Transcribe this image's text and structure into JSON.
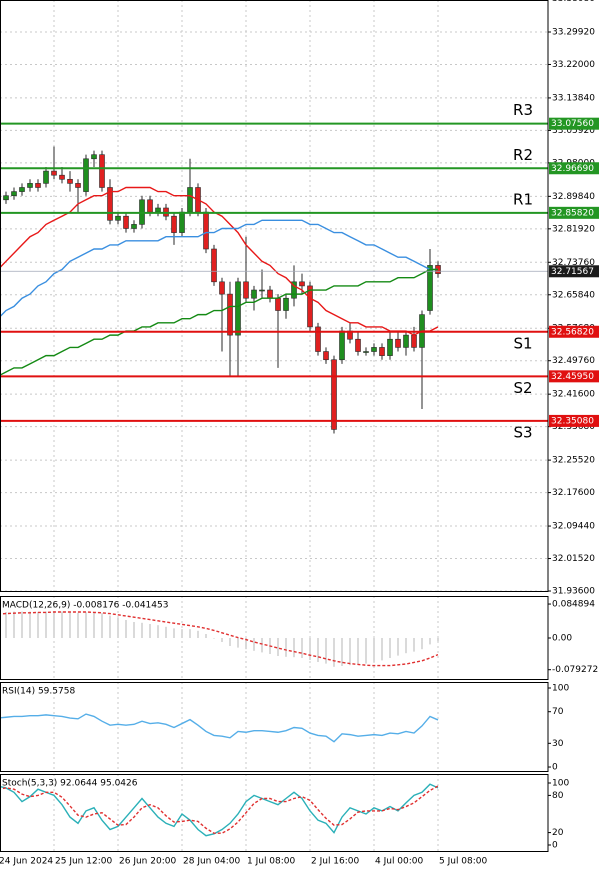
{
  "chart_data": [
    {
      "type": "candlestick",
      "categories": [
        "24 Jun 2024",
        null,
        null,
        null,
        null,
        null,
        null,
        "25 Jun 12:00",
        null,
        null,
        null,
        null,
        null,
        null,
        null,
        "26 Jun 20:00",
        null,
        null,
        null,
        null,
        null,
        null,
        null,
        "28 Jun 04:00",
        null,
        null,
        null,
        null,
        null,
        null,
        null,
        "1 Jul 08:00",
        null,
        null,
        null,
        null,
        null,
        null,
        null,
        "2 Jul 16:00",
        null,
        null,
        null,
        null,
        null,
        null,
        null,
        "4 Jul 00:00",
        null,
        null,
        null,
        null,
        null,
        null,
        null,
        "5 Jul 08:00"
      ],
      "open": [
        32.88,
        32.89,
        32.9,
        32.91,
        32.92,
        32.93,
        32.93,
        32.96,
        32.95,
        32.94,
        32.93,
        32.91,
        32.99,
        33.0,
        32.92,
        32.84,
        32.85,
        32.82,
        32.83,
        32.89,
        32.86,
        32.87,
        32.85,
        32.81,
        32.86,
        32.92,
        32.86,
        32.77,
        32.69,
        32.66,
        32.56,
        32.69,
        32.65,
        32.67,
        32.67,
        32.65,
        32.62,
        32.65,
        32.69,
        32.68,
        32.58,
        32.52,
        32.5,
        32.5,
        32.57,
        32.55,
        32.52,
        32.52,
        32.53,
        32.51,
        32.55,
        32.53,
        32.56,
        32.53,
        32.62,
        32.73
      ],
      "high": [
        32.9,
        32.91,
        32.92,
        32.93,
        32.94,
        32.94,
        32.97,
        33.02,
        32.97,
        32.96,
        32.94,
        33.0,
        33.01,
        33.01,
        32.94,
        32.86,
        32.86,
        32.84,
        32.9,
        32.9,
        32.88,
        32.88,
        32.86,
        32.87,
        32.99,
        32.93,
        32.87,
        32.78,
        32.7,
        32.69,
        32.7,
        32.8,
        32.68,
        32.72,
        32.68,
        32.66,
        32.66,
        32.73,
        32.71,
        32.69,
        32.59,
        32.53,
        32.51,
        32.58,
        32.59,
        32.57,
        32.53,
        32.54,
        32.54,
        32.57,
        32.57,
        32.57,
        32.58,
        32.62,
        32.77,
        32.74
      ],
      "low": [
        32.87,
        32.88,
        32.89,
        32.9,
        32.91,
        32.91,
        32.92,
        32.94,
        32.93,
        32.91,
        32.86,
        32.9,
        32.97,
        32.91,
        32.83,
        32.83,
        32.81,
        32.81,
        32.82,
        32.85,
        32.85,
        32.84,
        32.78,
        32.8,
        32.85,
        32.85,
        32.76,
        32.68,
        32.52,
        32.46,
        32.46,
        32.64,
        32.62,
        32.65,
        32.64,
        32.48,
        32.6,
        32.63,
        32.66,
        32.57,
        32.51,
        32.49,
        32.32,
        32.49,
        32.54,
        32.51,
        32.51,
        32.51,
        32.5,
        32.5,
        32.52,
        32.51,
        32.52,
        32.38,
        32.61,
        32.7
      ],
      "close": [
        32.89,
        32.9,
        32.91,
        32.92,
        32.93,
        32.92,
        32.96,
        32.95,
        32.94,
        32.93,
        32.92,
        32.99,
        33.0,
        32.92,
        32.84,
        32.85,
        32.82,
        32.83,
        32.89,
        32.86,
        32.87,
        32.85,
        32.81,
        32.86,
        32.92,
        32.86,
        32.77,
        32.69,
        32.66,
        32.56,
        32.69,
        32.65,
        32.67,
        32.67,
        32.65,
        32.62,
        32.65,
        32.69,
        32.68,
        32.58,
        32.52,
        32.5,
        32.33,
        32.57,
        32.55,
        32.52,
        32.52,
        32.53,
        32.51,
        32.55,
        32.53,
        32.56,
        32.53,
        32.61,
        32.73,
        32.71
      ],
      "up_color": "#1f8f1f",
      "down_color": "#e02020",
      "series": [
        {
          "color": "#e81818",
          "values": [
            32.72,
            32.74,
            32.76,
            32.78,
            32.8,
            32.81,
            32.83,
            32.84,
            32.85,
            32.86,
            32.88,
            32.89,
            32.9,
            32.9,
            32.91,
            32.91,
            32.92,
            32.92,
            32.92,
            32.92,
            32.91,
            32.91,
            32.9,
            32.9,
            32.9,
            32.89,
            32.88,
            32.86,
            32.85,
            32.83,
            32.81,
            32.78,
            32.76,
            32.74,
            32.73,
            32.71,
            32.7,
            32.68,
            32.67,
            32.65,
            32.64,
            32.62,
            32.61,
            32.6,
            32.59,
            32.59,
            32.58,
            32.58,
            32.58,
            32.57,
            32.57,
            32.57,
            32.56,
            32.57,
            32.57,
            32.58
          ]
        },
        {
          "color": "#3a8fe0",
          "values": [
            32.6,
            32.62,
            32.63,
            32.65,
            32.66,
            32.68,
            32.69,
            32.71,
            32.72,
            32.74,
            32.75,
            32.76,
            32.77,
            32.77,
            32.78,
            32.78,
            32.79,
            32.79,
            32.79,
            32.79,
            32.79,
            32.8,
            32.8,
            32.8,
            32.8,
            32.8,
            32.81,
            32.81,
            32.82,
            32.82,
            32.82,
            32.83,
            32.83,
            32.84,
            32.84,
            32.84,
            32.84,
            32.84,
            32.84,
            32.83,
            32.83,
            32.82,
            32.81,
            32.81,
            32.8,
            32.79,
            32.78,
            32.78,
            32.77,
            32.76,
            32.75,
            32.75,
            32.74,
            32.73,
            32.72,
            32.72
          ]
        },
        {
          "color": "#148a14",
          "values": [
            32.46,
            32.47,
            32.48,
            32.48,
            32.49,
            32.5,
            32.51,
            32.51,
            32.52,
            32.53,
            32.53,
            32.54,
            32.55,
            32.55,
            32.56,
            32.56,
            32.57,
            32.57,
            32.58,
            32.58,
            32.59,
            32.59,
            32.59,
            32.6,
            32.6,
            32.61,
            32.61,
            32.62,
            32.62,
            32.63,
            32.63,
            32.64,
            32.64,
            32.65,
            32.65,
            32.65,
            32.66,
            32.66,
            32.66,
            32.67,
            32.67,
            32.67,
            32.68,
            32.68,
            32.68,
            32.68,
            32.69,
            32.69,
            32.69,
            32.69,
            32.7,
            32.7,
            32.7,
            32.71,
            32.72,
            32.72
          ]
        }
      ],
      "levels": [
        {
          "name": "R3",
          "value": 33.0756,
          "label": "33.07560",
          "color": "#239623"
        },
        {
          "name": "R2",
          "value": 32.9669,
          "label": "32.96690",
          "color": "#239623"
        },
        {
          "name": "R1",
          "value": 32.8582,
          "label": "32.85820",
          "color": "#239623"
        },
        {
          "name": "S1",
          "value": 32.5682,
          "label": "32.56820",
          "color": "#e01010"
        },
        {
          "name": "S2",
          "value": 32.4595,
          "label": "32.45950",
          "color": "#e01010"
        },
        {
          "name": "S3",
          "value": 32.3508,
          "label": "32.35080",
          "color": "#e01010"
        }
      ],
      "current": {
        "value": 32.71567,
        "color": "#1a1a1a"
      },
      "ylim": [
        31.9336,
        33.3772
      ],
      "yticks": [
        {
          "value": 33.3808,
          "label": "33.38080"
        },
        {
          "value": 33.2992,
          "label": "33.29920"
        },
        {
          "value": 33.22,
          "label": "33.22000"
        },
        {
          "value": 33.1384,
          "label": "33.13840"
        },
        {
          "value": 33.0592,
          "label": "33.05920"
        },
        {
          "value": 32.98,
          "label": "32.98000"
        },
        {
          "value": 32.8984,
          "label": "32.89840"
        },
        {
          "value": 32.8192,
          "label": "32.81920"
        },
        {
          "value": 32.7376,
          "label": "32.73760"
        },
        {
          "value": 32.6584,
          "label": "32.65840"
        },
        {
          "value": 32.5768,
          "label": "32.57680"
        },
        {
          "value": 32.4976,
          "label": "32.49760"
        },
        {
          "value": 32.416,
          "label": "32.41600"
        },
        {
          "value": 32.3368,
          "label": "32.33680"
        },
        {
          "value": 32.2552,
          "label": "32.25520"
        },
        {
          "value": 32.176,
          "label": "32.17600"
        },
        {
          "value": 32.0944,
          "label": "32.09440"
        },
        {
          "value": 32.0152,
          "label": "32.01520"
        },
        {
          "value": 31.936,
          "label": "31.93600"
        }
      ],
      "grid": true
    },
    {
      "type": "bar",
      "label": "MACD(12,26,9) -0.008176 -0.041453",
      "values": [
        0.065,
        0.065,
        0.066,
        0.066,
        0.066,
        0.065,
        0.066,
        0.067,
        0.066,
        0.065,
        0.063,
        0.064,
        0.065,
        0.062,
        0.056,
        0.05,
        0.045,
        0.04,
        0.038,
        0.035,
        0.032,
        0.028,
        0.024,
        0.022,
        0.022,
        0.018,
        0.01,
        0.0,
        -0.01,
        -0.02,
        -0.024,
        -0.028,
        -0.032,
        -0.036,
        -0.04,
        -0.045,
        -0.047,
        -0.048,
        -0.05,
        -0.055,
        -0.06,
        -0.064,
        -0.072,
        -0.07,
        -0.068,
        -0.066,
        -0.064,
        -0.06,
        -0.056,
        -0.05,
        -0.044,
        -0.038,
        -0.034,
        -0.028,
        -0.016,
        -0.008176
      ],
      "color": "#b4b4b4",
      "series": [
        {
          "color": "#e03030",
          "dash": true,
          "values": [
            0.06,
            0.061,
            0.062,
            0.063,
            0.063,
            0.064,
            0.064,
            0.065,
            0.065,
            0.065,
            0.065,
            0.065,
            0.064,
            0.063,
            0.061,
            0.058,
            0.055,
            0.052,
            0.049,
            0.046,
            0.043,
            0.04,
            0.037,
            0.034,
            0.031,
            0.028,
            0.024,
            0.019,
            0.013,
            0.007,
            0.001,
            -0.004,
            -0.01,
            -0.015,
            -0.02,
            -0.025,
            -0.03,
            -0.034,
            -0.038,
            -0.043,
            -0.047,
            -0.052,
            -0.057,
            -0.061,
            -0.064,
            -0.066,
            -0.068,
            -0.069,
            -0.069,
            -0.069,
            -0.067,
            -0.065,
            -0.061,
            -0.057,
            -0.05,
            -0.041453
          ]
        }
      ],
      "ylim": [
        -0.105,
        0.105
      ],
      "yticks": [
        0.084894,
        {
          "value": 0,
          "label": "0.00"
        },
        -0.079272
      ]
    },
    {
      "type": "line",
      "label": "RSI(14) 59.5758",
      "series": [
        {
          "color": "#55aee8",
          "values": [
            62,
            63,
            64,
            64,
            65,
            65,
            66,
            65,
            64,
            62,
            61,
            67,
            64,
            58,
            53,
            54,
            53,
            54,
            58,
            55,
            56,
            54,
            50,
            55,
            60,
            53,
            45,
            40,
            39,
            37,
            45,
            44,
            46,
            46,
            45,
            44,
            46,
            50,
            49,
            43,
            40,
            39,
            32,
            42,
            41,
            39,
            40,
            41,
            40,
            43,
            42,
            45,
            43,
            52,
            64,
            59.5758
          ]
        }
      ],
      "ylim": [
        -6.3,
        107.6
      ],
      "yticks": [
        100,
        70,
        30,
        0
      ]
    },
    {
      "type": "line",
      "label": "Stoch(5,3,3) 92.0644 95.0426",
      "series": [
        {
          "color": "#2ab0b8",
          "values": [
            95,
            92,
            85,
            70,
            78,
            90,
            85,
            80,
            65,
            45,
            35,
            55,
            60,
            40,
            25,
            30,
            45,
            60,
            75,
            60,
            45,
            35,
            30,
            50,
            40,
            25,
            15,
            18,
            25,
            35,
            50,
            70,
            80,
            75,
            70,
            65,
            75,
            85,
            75,
            55,
            40,
            35,
            20,
            45,
            60,
            55,
            50,
            60,
            55,
            62,
            55,
            68,
            80,
            85,
            98,
            92.0644
          ]
        },
        {
          "color": "#e03030",
          "dash": true,
          "values": [
            90,
            92,
            90,
            82,
            78,
            80,
            85,
            85,
            77,
            63,
            48,
            45,
            50,
            52,
            42,
            32,
            33,
            45,
            60,
            65,
            60,
            47,
            37,
            38,
            40,
            38,
            27,
            19,
            19,
            26,
            37,
            52,
            67,
            75,
            75,
            70,
            70,
            75,
            78,
            72,
            57,
            43,
            32,
            33,
            42,
            53,
            55,
            55,
            55,
            59,
            57,
            62,
            68,
            78,
            88,
            95.0426
          ]
        }
      ],
      "ylim": [
        -11.3,
        114.5
      ],
      "yticks": [
        100,
        80,
        20,
        0
      ]
    }
  ]
}
